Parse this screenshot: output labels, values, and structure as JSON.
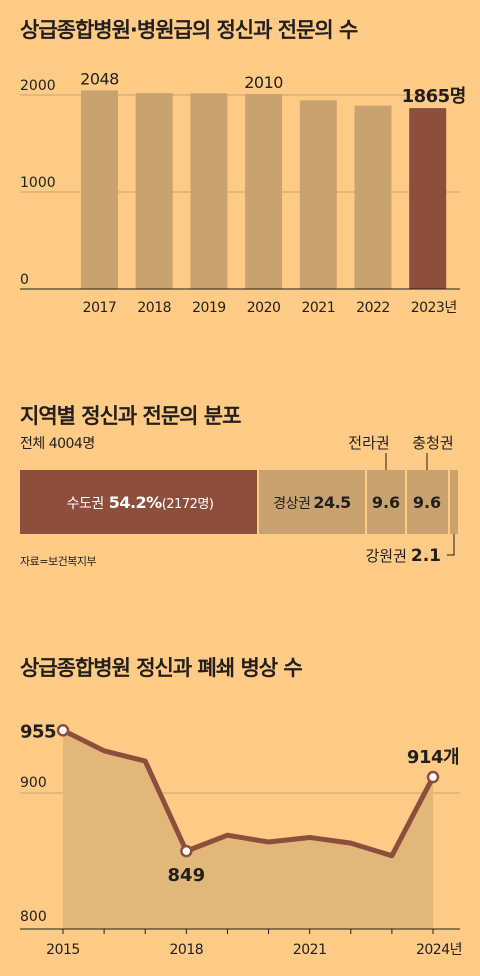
{
  "chart1": {
    "title": "상급종합병원·병원급의 정신과 전문의 수",
    "chart_data": {
      "type": "bar",
      "categories": [
        "2017",
        "2018",
        "2019",
        "2020",
        "2021",
        "2022",
        "2023년"
      ],
      "values": [
        2048,
        2020,
        2018,
        2010,
        1945,
        1890,
        1865
      ],
      "ylim": [
        0,
        2200
      ],
      "yticks": [
        "0",
        "1000",
        "2000"
      ],
      "data_labels": [
        "2048",
        "",
        "",
        "2010",
        "",
        "",
        "1865명"
      ],
      "colors": {
        "bar": "#C9A36F",
        "highlight": "#8E4E3C"
      }
    }
  },
  "chart2": {
    "title": "지역별 정신과 전문의 분포",
    "subtitle": "전체 4004명",
    "chart_data": {
      "type": "bar",
      "stacked": true,
      "series": [
        {
          "name": "수도권",
          "value": 54.2,
          "count": "2172명",
          "color": "#8E4E3C"
        },
        {
          "name": "경상권",
          "value": 24.5,
          "color": "#C9A36F"
        },
        {
          "name": "전라권",
          "value": 9.6,
          "color": "#C9A36F"
        },
        {
          "name": "충청권",
          "value": 9.6,
          "color": "#C9A36F"
        },
        {
          "name": "강원권",
          "value": 2.1,
          "color": "#C9A36F"
        }
      ],
      "labels": {
        "sudo_name": "수도권",
        "sudo_pct": "54.2%",
        "sudo_count": "(2172명)",
        "gyeong_name": "경상권",
        "gyeong_val": "24.5",
        "jeolla_name": "전라권",
        "jeolla_val": "9.6",
        "chung_name": "충청권",
        "chung_val": "9.6",
        "gang_name": "강원권",
        "gang_val": "2.1"
      }
    },
    "source": "자료=보건복지부"
  },
  "chart3": {
    "title": "상급종합병원 정신과 폐쇄 병상 수",
    "chart_data": {
      "type": "line",
      "x": [
        2015,
        2016,
        2017,
        2018,
        2019,
        2020,
        2021,
        2022,
        2023,
        2024
      ],
      "values": [
        955,
        937,
        928,
        849,
        863,
        857,
        861,
        856,
        845,
        914
      ],
      "ylim": [
        800,
        965
      ],
      "yticks": [
        "800",
        "900"
      ],
      "xtick_labels": [
        "2015",
        "2018",
        "2021",
        "2024년"
      ],
      "data_labels": {
        "first": "955",
        "min": "849",
        "last": "914개"
      },
      "colors": {
        "line": "#8E4E3C",
        "area": "#E2B77A"
      }
    }
  }
}
